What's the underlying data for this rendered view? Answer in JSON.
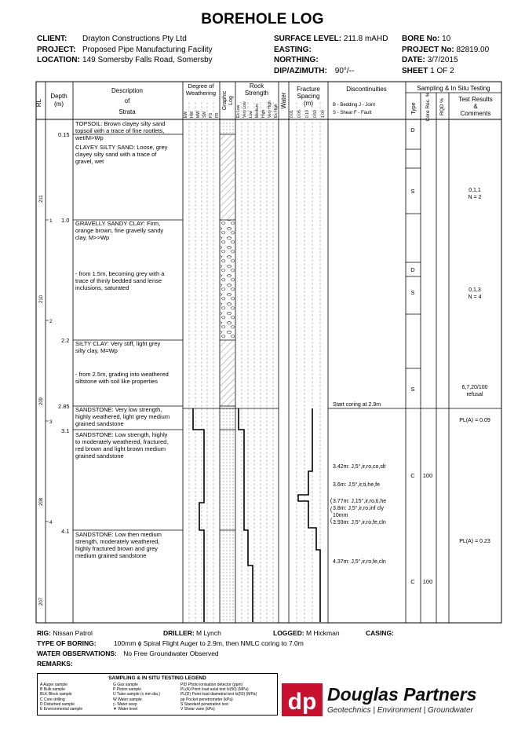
{
  "title": "BOREHOLE LOG",
  "header": {
    "client_label": "CLIENT:",
    "client": "Drayton Constructions Pty Ltd",
    "project_label": "PROJECT:",
    "project": "Proposed Pipe Manufacturing Facility",
    "location_label": "LOCATION:",
    "location": "149 Somersby Falls Road, Somersby",
    "surface_level_label": "SURFACE LEVEL:",
    "surface_level": "211.8 mAHD",
    "easting_label": "EASTING:",
    "easting": "",
    "northing_label": "NORTHING:",
    "northing": "",
    "dip_label": "DIP/AZIMUTH:",
    "dip": "90°/--",
    "bore_no_label": "BORE No:",
    "bore_no": "10",
    "project_no_label": "PROJECT No:",
    "project_no": "82819.00",
    "date_label": "DATE:",
    "date": "3/7/2015",
    "sheet_label": "SHEET",
    "sheet": "1 OF 2"
  },
  "columns": {
    "rl": "RL",
    "depth": "Depth",
    "depth_unit": "(m)",
    "description": [
      "Description",
      "of",
      "Strata"
    ],
    "weathering": [
      "Degree of",
      "Weathering"
    ],
    "weathering_ticks": [
      "EW",
      "HW",
      "MW",
      "SW",
      "FS",
      "FR"
    ],
    "graphic_log": [
      "Graphic",
      "Log"
    ],
    "rock_strength": [
      "Rock",
      "Strength"
    ],
    "strength_ticks": [
      "Ex Low",
      "Very Low",
      "Low",
      "Medium",
      "High",
      "Very High",
      "Ex High"
    ],
    "water": "Water",
    "fracture_spacing": [
      "Fracture",
      "Spacing",
      "(m)"
    ],
    "fracture_ticks": [
      "0.01",
      "0.05",
      "0.10",
      "0.50",
      "1.00"
    ],
    "discontinuities": "Discontinuities",
    "disc_legend_1": "B - Bedding   J - Joint",
    "disc_legend_2": "S - Shear     F - Fault",
    "sampling": "Sampling & In Situ Testing",
    "type": "Type",
    "core_rec": "Core Rec. %",
    "rqd": "RQD %",
    "test_results": [
      "Test Results",
      "&",
      "Comments"
    ]
  },
  "rl_ticks": [
    "211",
    "210",
    "209",
    "208",
    "207"
  ],
  "depth_ticks": [
    "1",
    "2",
    "3",
    "4"
  ],
  "strata": [
    {
      "depth": "0.15",
      "text": [
        "TOPSOIL: Brown clayey silty sand",
        "topsoil with a trace of fine rootlets,",
        "wet/M>Wp"
      ]
    },
    {
      "depth": "",
      "text": [
        "CLAYEY SILTY SAND: Loose, grey",
        "clayey silty sand with a trace of",
        "gravel, wet"
      ]
    },
    {
      "depth": "1.0",
      "text": [
        "GRAVELLY SANDY CLAY: Firm,",
        "orange brown, fine gravelly sandy",
        "clay, M>>Wp"
      ]
    },
    {
      "depth": "",
      "text": [
        "- from 1.5m, becoming grey with a",
        "trace of thinly bedded sand lense",
        "inclusions, saturated"
      ]
    },
    {
      "depth": "2.2",
      "text": [
        "SILTY CLAY: Very stiff, light grey",
        "silty clay, M=Wp"
      ]
    },
    {
      "depth": "",
      "text": [
        "- from 2.5m, grading into weathered",
        "siltstone with soil like properties"
      ]
    },
    {
      "depth": "2.85",
      "text": [
        "SANDSTONE: Very low strength,",
        "highly weathered, light grey medium",
        "grained sandstone"
      ]
    },
    {
      "depth": "3.1",
      "text": [
        "SANDSTONE: Low strength, highly",
        "to moderately weathered, fractured,",
        "red brown and light brown medium",
        "grained sandstone"
      ]
    },
    {
      "depth": "4.1",
      "text": [
        "SANDSTONE: Low then medium",
        "strength, moderately weathered,",
        "highly fractured brown and grey",
        "medium grained sandstone"
      ]
    }
  ],
  "discontinuities": {
    "start_coring": "Start coring at 2.9m",
    "d1": "3.42m: J,5°,ir,ro,co,slt",
    "d2": "3.6m: J,5°,ir,ti,he,fe",
    "d3": "3.77m: J,15°,ir,ro,ti,he",
    "d4a": "3.8m: J,5°,ir,ro,inf cly",
    "d4b": "10mm",
    "d5": "3.93m: J,5°,ir,ro,fe,cln",
    "d6": "4.37m: J,5°,ir,ro,fe,cln"
  },
  "samples": {
    "d1": "D",
    "s1": "S",
    "d2": "D",
    "s2": "S",
    "s3": "S",
    "c1": "C",
    "c2": "C",
    "rec1": "100",
    "rec2": "100",
    "t1a": "0,1,1",
    "t1b": "N = 2",
    "t2a": "0,1,3",
    "t2b": "N = 4",
    "t3a": "6,7,20/100",
    "t3b": "refusal",
    "pl1": "PL(A) = 0.09",
    "pl2": "PL(A) = 0.23"
  },
  "footer": {
    "rig_label": "RIG:",
    "rig": "Nissan Patrol",
    "driller_label": "DRILLER:",
    "driller": "M Lynch",
    "logged_label": "LOGGED:",
    "logged": "M Hickman",
    "casing_label": "CASING:",
    "casing": "",
    "boring_label": "TYPE OF BORING:",
    "boring": "100mm ϕ Spiral Flight Auger to 2.9m, then NMLC coring to 7.0m",
    "water_label": "WATER OBSERVATIONS:",
    "water": "No Free Groundwater Observed",
    "remarks_label": "REMARKS:",
    "remarks": ""
  },
  "legend": {
    "title": "SAMPLING & IN SITU TESTING LEGEND",
    "col1": [
      "A   Auger sample",
      "B   Bulk sample",
      "BLK Block sample",
      "C   Core drilling",
      "D   Disturbed sample",
      "E   Environmental sample"
    ],
    "col2": [
      "G   Gas sample",
      "P   Piston sample",
      "U   Tube sample (x mm dia.)",
      "W   Water sample",
      "▷   Water seep",
      "▼   Water level"
    ],
    "col3": [
      "PID  Photo ionisation detector (ppm)",
      "PL(A) Point load axial test Is(50) (MPa)",
      "PL(D) Point load diametral test Is(50) (MPa)",
      "pp   Pocket penetrometer (kPa)",
      "S    Standard penetration test",
      "V    Shear vane (kPa)"
    ]
  },
  "brand": {
    "name": "Douglas Partners",
    "tagline": "Geotechnics  |  Environment  |  Groundwater",
    "color": "#c8102e"
  }
}
